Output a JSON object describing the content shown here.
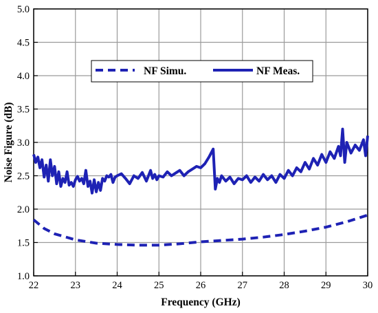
{
  "chart_data": {
    "type": "line",
    "xlabel": "Frequency (GHz)",
    "ylabel": "Noise Figure (dB)",
    "xlim": [
      22,
      30
    ],
    "ylim": [
      1.0,
      5.0
    ],
    "x_ticks": [
      "22",
      "23",
      "24",
      "25",
      "26",
      "27",
      "28",
      "29",
      "30"
    ],
    "y_ticks": [
      "1.0",
      "1.5",
      "2.0",
      "2.5",
      "3.0",
      "3.5",
      "4.0",
      "4.5",
      "5.0"
    ],
    "grid": true,
    "legend_position": "top-center",
    "series_color": "#1e22b4",
    "series": [
      {
        "name": "NF Simu.",
        "style": "dashed",
        "x": [
          22.0,
          22.25,
          22.5,
          23.0,
          23.5,
          24.0,
          24.5,
          25.0,
          25.5,
          26.0,
          26.5,
          27.0,
          27.5,
          28.0,
          28.5,
          29.0,
          29.5,
          30.0
        ],
        "y": [
          1.84,
          1.71,
          1.63,
          1.54,
          1.49,
          1.47,
          1.46,
          1.46,
          1.48,
          1.51,
          1.53,
          1.55,
          1.58,
          1.62,
          1.67,
          1.73,
          1.81,
          1.91
        ]
      },
      {
        "name": "NF Meas.",
        "style": "solid",
        "x": [
          22.0,
          22.05,
          22.1,
          22.15,
          22.2,
          22.25,
          22.3,
          22.35,
          22.4,
          22.45,
          22.5,
          22.55,
          22.6,
          22.65,
          22.7,
          22.75,
          22.8,
          22.85,
          22.9,
          22.95,
          23.0,
          23.05,
          23.1,
          23.15,
          23.2,
          23.25,
          23.3,
          23.35,
          23.4,
          23.45,
          23.5,
          23.55,
          23.6,
          23.65,
          23.7,
          23.75,
          23.8,
          23.85,
          23.9,
          23.95,
          24.0,
          24.1,
          24.2,
          24.3,
          24.4,
          24.5,
          24.6,
          24.7,
          24.8,
          24.85,
          24.9,
          24.95,
          25.0,
          25.1,
          25.2,
          25.3,
          25.4,
          25.5,
          25.6,
          25.7,
          25.8,
          25.9,
          26.0,
          26.1,
          26.2,
          26.3,
          26.35,
          26.4,
          26.45,
          26.5,
          26.6,
          26.7,
          26.8,
          26.9,
          27.0,
          27.1,
          27.2,
          27.3,
          27.4,
          27.5,
          27.6,
          27.7,
          27.8,
          27.9,
          28.0,
          28.1,
          28.2,
          28.3,
          28.4,
          28.5,
          28.6,
          28.7,
          28.8,
          28.9,
          29.0,
          29.1,
          29.2,
          29.3,
          29.35,
          29.4,
          29.45,
          29.5,
          29.6,
          29.7,
          29.8,
          29.9,
          29.95,
          30.0
        ],
        "y": [
          2.82,
          2.7,
          2.78,
          2.62,
          2.74,
          2.48,
          2.66,
          2.42,
          2.74,
          2.5,
          2.64,
          2.38,
          2.56,
          2.34,
          2.46,
          2.4,
          2.56,
          2.36,
          2.4,
          2.34,
          2.44,
          2.49,
          2.42,
          2.46,
          2.38,
          2.58,
          2.34,
          2.42,
          2.24,
          2.44,
          2.26,
          2.4,
          2.28,
          2.46,
          2.42,
          2.5,
          2.48,
          2.52,
          2.4,
          2.48,
          2.5,
          2.53,
          2.46,
          2.38,
          2.5,
          2.46,
          2.55,
          2.42,
          2.58,
          2.46,
          2.52,
          2.44,
          2.5,
          2.48,
          2.56,
          2.5,
          2.54,
          2.58,
          2.5,
          2.56,
          2.6,
          2.64,
          2.62,
          2.68,
          2.78,
          2.9,
          2.3,
          2.46,
          2.4,
          2.5,
          2.42,
          2.48,
          2.38,
          2.46,
          2.44,
          2.5,
          2.4,
          2.48,
          2.42,
          2.52,
          2.44,
          2.5,
          2.4,
          2.52,
          2.46,
          2.58,
          2.5,
          2.62,
          2.56,
          2.7,
          2.6,
          2.76,
          2.66,
          2.82,
          2.7,
          2.86,
          2.76,
          2.94,
          2.8,
          3.2,
          2.7,
          3.0,
          2.84,
          2.96,
          2.88,
          3.04,
          2.8,
          3.1
        ]
      }
    ]
  }
}
